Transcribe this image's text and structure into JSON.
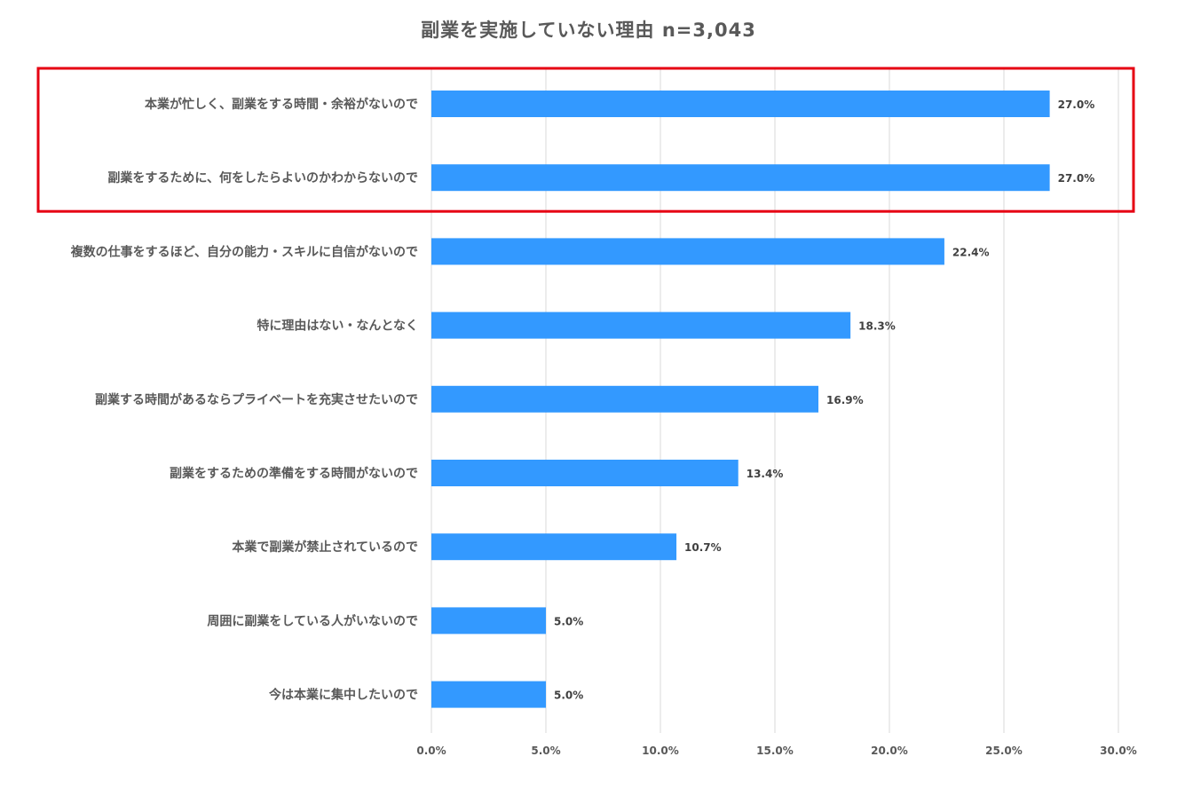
{
  "title": "副業を実施していない理由 n=3,043",
  "highlight_color": "#e60012",
  "bar_color": "#3399ff",
  "grid_color": "#d9d9d9",
  "chart_data": {
    "type": "bar",
    "orientation": "horizontal",
    "title": "副業を実施していない理由 n=3,043",
    "categories": [
      "本業が忙しく、副業をする時間・余裕がないので",
      "副業をするために、何をしたらよいのかわからないので",
      "複数の仕事をするほど、自分の能力・スキルに自信がないので",
      "特に理由はない・なんとなく",
      "副業する時間があるならプライベートを充実させたいので",
      "副業をするための準備をする時間がないので",
      "本業で副業が禁止されているので",
      "周囲に副業をしている人がいないので",
      "今は本業に集中したいので"
    ],
    "values": [
      27.0,
      27.0,
      22.4,
      18.3,
      16.9,
      13.4,
      10.7,
      5.0,
      5.0
    ],
    "value_labels": [
      "27.0%",
      "27.0%",
      "22.4%",
      "18.3%",
      "16.9%",
      "13.4%",
      "10.7%",
      "5.0%",
      "5.0%"
    ],
    "xlim": [
      0,
      30
    ],
    "xticks": [
      0,
      5,
      10,
      15,
      20,
      25,
      30
    ],
    "xtick_labels": [
      "0.0%",
      "5.0%",
      "10.0%",
      "15.0%",
      "20.0%",
      "25.0%",
      "30.0%"
    ],
    "grid": true,
    "legend": "none",
    "highlighted_categories": [
      0,
      1
    ]
  }
}
